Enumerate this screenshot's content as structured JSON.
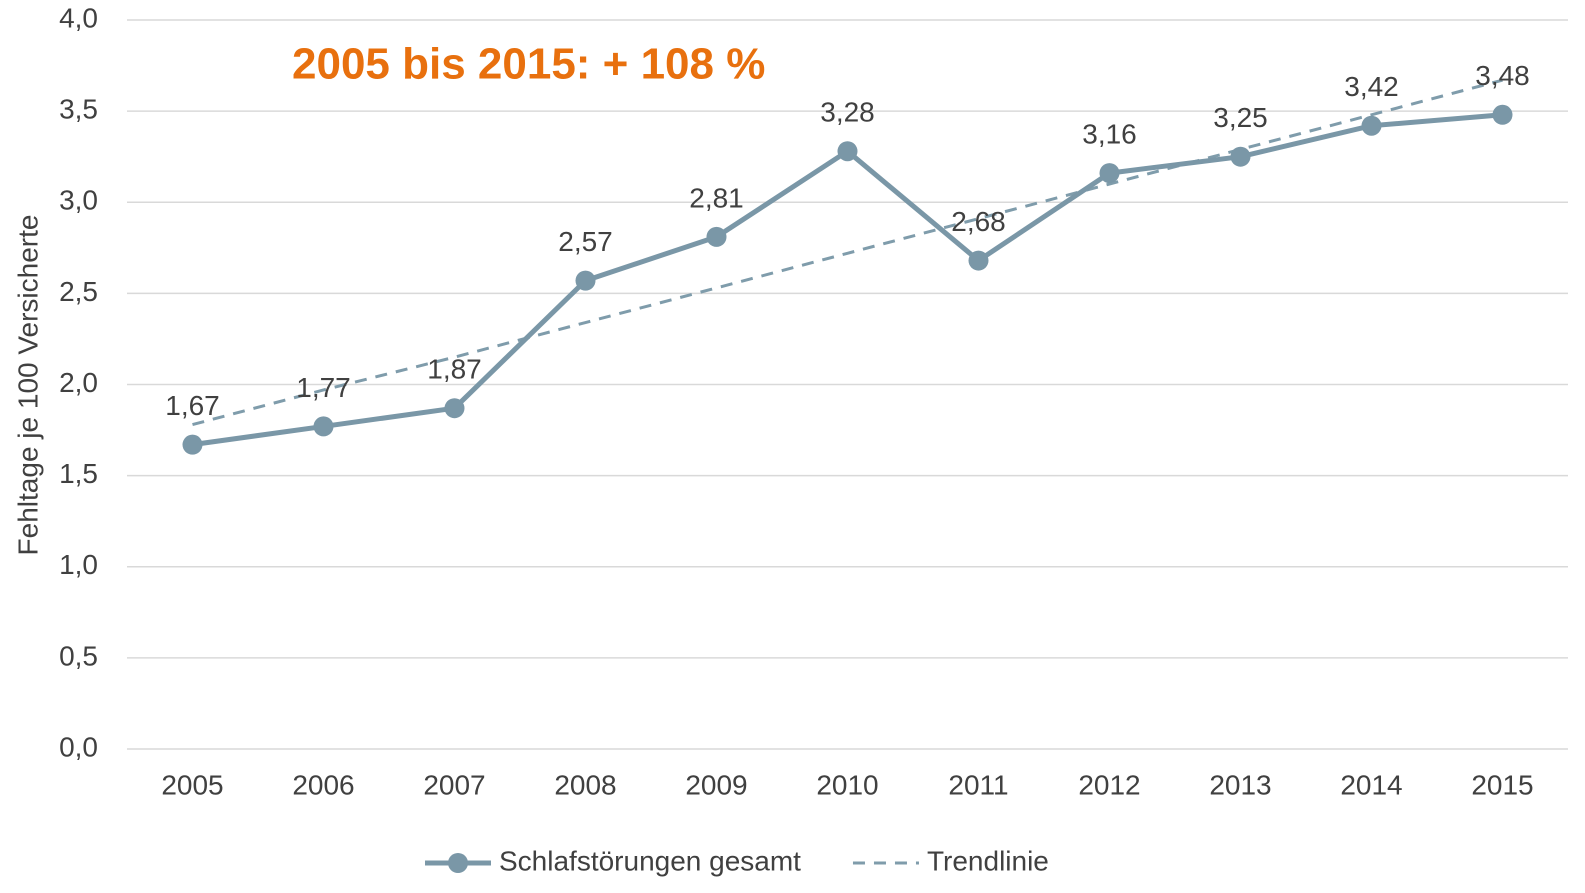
{
  "chart_data": {
    "type": "line",
    "annotation": "2005 bis 2015: + 108 %",
    "annotation_color": "#e8700e",
    "y_label": "Fehltage je 100 Versicherte",
    "categories": [
      "2005",
      "2006",
      "2007",
      "2008",
      "2009",
      "2010",
      "2011",
      "2012",
      "2013",
      "2014",
      "2015"
    ],
    "series": [
      {
        "name": "Schlafstörungen gesamt",
        "color": "#7a97a7",
        "dashed": false,
        "markers": true,
        "values": [
          1.67,
          1.77,
          1.87,
          2.57,
          2.81,
          3.28,
          2.68,
          3.16,
          3.25,
          3.42,
          3.48
        ],
        "value_labels": [
          "1,67",
          "1,77",
          "1,87",
          "2,57",
          "2,81",
          "3,28",
          "2,68",
          "3,16",
          "3,25",
          "3,42",
          "3,48"
        ]
      },
      {
        "name": "Trendlinie",
        "color": "#7f9cab",
        "dashed": true,
        "markers": false,
        "values": [
          1.78,
          1.97,
          2.15,
          2.34,
          2.53,
          2.72,
          2.91,
          3.1,
          3.29,
          3.48,
          3.67
        ]
      }
    ],
    "ylim": [
      0,
      4
    ],
    "yticks": [
      {
        "value": 0,
        "label": "0,0"
      },
      {
        "value": 0.5,
        "label": "0,5"
      },
      {
        "value": 1,
        "label": "1,0"
      },
      {
        "value": 1.5,
        "label": "1,5"
      },
      {
        "value": 2,
        "label": "2,0"
      },
      {
        "value": 2.5,
        "label": "2,5"
      },
      {
        "value": 3,
        "label": "3,0"
      },
      {
        "value": 3.5,
        "label": "3,5"
      },
      {
        "value": 4,
        "label": "4,0"
      }
    ],
    "grid": true,
    "legend": "bottom"
  }
}
